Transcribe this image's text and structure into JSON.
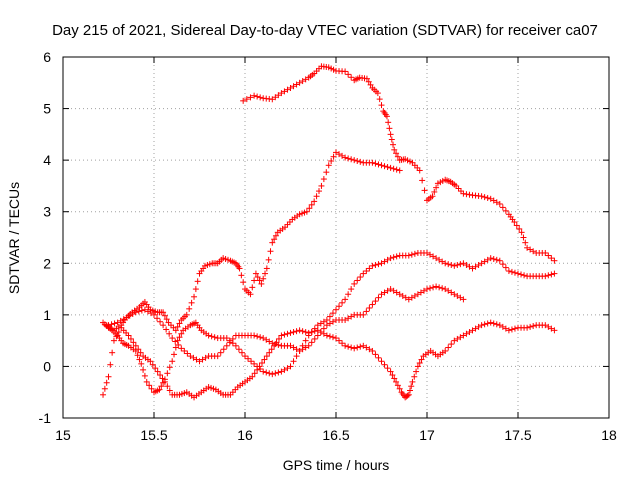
{
  "chart_data": {
    "type": "scatter",
    "title": "Day 215 of 2021, Sidereal Day-to-day VTEC variation (SDTVAR) for receiver ca07",
    "xlabel": "GPS time / hours",
    "ylabel": "SDTVAR / TECUs",
    "xlim": [
      15,
      18
    ],
    "ylim": [
      -1,
      6
    ],
    "xticks": [
      "15",
      "15.5",
      "16",
      "16.5",
      "17",
      "17.5",
      "18"
    ],
    "yticks": [
      "-1",
      "0",
      "1",
      "2",
      "3",
      "4",
      "5",
      "6"
    ],
    "grid": true,
    "legend": "none",
    "marker": "plus",
    "color": "#ff0000",
    "series": [
      {
        "x": [
          15.99,
          16.05,
          16.1,
          16.15,
          16.2,
          16.25,
          16.3,
          16.35,
          16.38,
          16.42,
          16.46,
          16.5,
          16.55,
          16.6,
          16.63,
          16.67,
          16.7,
          16.73,
          16.76,
          16.78,
          16.8,
          16.82,
          16.85,
          16.88,
          16.92,
          16.96,
          17.0,
          17.03,
          17.06,
          17.1,
          17.13,
          17.16,
          17.2,
          17.25,
          17.3,
          17.35,
          17.4,
          17.45,
          17.48,
          17.52,
          17.55,
          17.6,
          17.65,
          17.7
        ],
        "y": [
          5.15,
          5.25,
          5.2,
          5.18,
          5.3,
          5.4,
          5.5,
          5.6,
          5.68,
          5.82,
          5.8,
          5.73,
          5.72,
          5.55,
          5.6,
          5.58,
          5.4,
          5.3,
          4.95,
          4.85,
          4.5,
          4.2,
          4.0,
          4.02,
          3.95,
          3.8,
          3.22,
          3.3,
          3.55,
          3.62,
          3.58,
          3.5,
          3.35,
          3.32,
          3.3,
          3.25,
          3.15,
          2.95,
          2.8,
          2.6,
          2.3,
          2.2,
          2.2,
          2.05
        ]
      },
      {
        "x": [
          15.22,
          15.25,
          15.28,
          15.32,
          15.35,
          15.38,
          15.42,
          15.45,
          15.48,
          15.52,
          15.55,
          15.58,
          15.62,
          15.65,
          15.68,
          15.72,
          15.75,
          15.78,
          15.82,
          15.85,
          15.88,
          15.92,
          15.95,
          15.97,
          16.0,
          16.03,
          16.06,
          16.09,
          16.12,
          16.15,
          16.18,
          16.22,
          16.26,
          16.3,
          16.34,
          16.38,
          16.42,
          16.46,
          16.5,
          16.55,
          16.6,
          16.65,
          16.7,
          16.75,
          16.8,
          16.85
        ],
        "y": [
          0.85,
          0.75,
          0.7,
          0.8,
          0.95,
          1.05,
          1.15,
          1.25,
          1.1,
          1.05,
          1.05,
          0.85,
          0.7,
          0.9,
          1.0,
          1.35,
          1.8,
          1.95,
          2.0,
          2.0,
          2.1,
          2.05,
          2.0,
          1.9,
          1.5,
          1.4,
          1.8,
          1.6,
          1.9,
          2.4,
          2.6,
          2.7,
          2.85,
          2.95,
          3.0,
          3.2,
          3.5,
          3.9,
          4.15,
          4.05,
          4.0,
          3.95,
          3.95,
          3.9,
          3.85,
          3.8
        ]
      },
      {
        "x": [
          15.24,
          15.27,
          15.3,
          15.33,
          15.36,
          15.4,
          15.43,
          15.46,
          15.5,
          15.53,
          15.56,
          15.6,
          15.63,
          15.66,
          15.7,
          15.73,
          15.76,
          15.8,
          15.85,
          15.9,
          15.95,
          16.0,
          16.05,
          16.1,
          16.15,
          16.2,
          16.25,
          16.3,
          16.35,
          16.4,
          16.45,
          16.5,
          16.55,
          16.6,
          16.65,
          16.7,
          16.75,
          16.8,
          16.85,
          16.9,
          16.95,
          17.0,
          17.05,
          17.1,
          17.15,
          17.2,
          17.25,
          17.3,
          17.35,
          17.4,
          17.45,
          17.5,
          17.55,
          17.6,
          17.65,
          17.7
        ],
        "y": [
          0.8,
          0.7,
          0.6,
          0.45,
          0.4,
          0.3,
          0.05,
          -0.3,
          -0.5,
          -0.45,
          -0.25,
          0.1,
          0.5,
          0.7,
          0.8,
          0.85,
          0.7,
          0.6,
          0.55,
          0.55,
          0.4,
          0.2,
          0.05,
          -0.1,
          -0.15,
          -0.1,
          0.0,
          0.3,
          0.6,
          0.8,
          0.9,
          1.1,
          1.3,
          1.6,
          1.8,
          1.95,
          2.0,
          2.1,
          2.15,
          2.15,
          2.2,
          2.2,
          2.1,
          2.0,
          1.95,
          2.0,
          1.9,
          2.0,
          2.1,
          2.05,
          1.85,
          1.8,
          1.75,
          1.75,
          1.75,
          1.8
        ]
      },
      {
        "x": [
          15.25,
          15.3,
          15.35,
          15.4,
          15.45,
          15.5,
          15.55,
          15.6,
          15.65,
          15.7,
          15.75,
          15.8,
          15.85,
          15.9,
          15.95,
          16.0,
          16.05,
          16.1,
          16.15,
          16.2,
          16.25,
          16.3,
          16.35,
          16.4,
          16.45,
          16.5,
          16.55,
          16.6,
          16.65,
          16.7,
          16.75,
          16.8,
          16.85,
          16.9,
          16.95,
          17.0,
          17.05,
          17.1,
          17.15,
          17.2
        ],
        "y": [
          0.8,
          0.85,
          0.95,
          1.05,
          1.1,
          1.0,
          0.8,
          0.55,
          0.35,
          0.2,
          0.1,
          0.2,
          0.2,
          0.4,
          0.6,
          0.6,
          0.6,
          0.55,
          0.45,
          0.4,
          0.4,
          0.3,
          0.4,
          0.6,
          0.8,
          0.9,
          0.9,
          1.0,
          1.0,
          1.2,
          1.4,
          1.5,
          1.4,
          1.3,
          1.4,
          1.5,
          1.55,
          1.5,
          1.4,
          1.3
        ]
      },
      {
        "x": [
          15.22,
          15.25,
          15.28,
          15.32,
          15.36,
          15.4,
          15.44,
          15.48,
          15.52,
          15.56,
          15.6,
          15.64,
          15.68,
          15.72,
          15.76,
          15.8,
          15.84,
          15.88,
          15.92,
          15.96,
          16.0,
          16.04,
          16.08,
          16.12,
          16.16,
          16.2,
          16.25,
          16.3,
          16.35,
          16.4,
          16.45,
          16.5,
          16.55,
          16.6,
          16.65,
          16.7,
          16.75,
          16.8,
          16.83,
          16.86,
          16.88,
          16.9,
          16.92,
          16.95,
          16.98,
          17.02,
          17.06,
          17.1,
          17.15,
          17.2,
          17.25,
          17.3,
          17.35,
          17.4,
          17.45,
          17.5,
          17.55,
          17.6,
          17.65,
          17.7
        ],
        "y": [
          -0.55,
          -0.2,
          0.5,
          0.75,
          0.6,
          0.4,
          0.2,
          0.1,
          -0.1,
          -0.3,
          -0.55,
          -0.55,
          -0.5,
          -0.6,
          -0.5,
          -0.4,
          -0.45,
          -0.55,
          -0.55,
          -0.4,
          -0.3,
          -0.2,
          0.0,
          0.2,
          0.4,
          0.6,
          0.65,
          0.7,
          0.65,
          0.7,
          0.6,
          0.55,
          0.4,
          0.35,
          0.4,
          0.3,
          0.1,
          -0.1,
          -0.3,
          -0.5,
          -0.6,
          -0.55,
          -0.3,
          0.0,
          0.2,
          0.3,
          0.2,
          0.3,
          0.5,
          0.6,
          0.7,
          0.8,
          0.85,
          0.8,
          0.7,
          0.75,
          0.75,
          0.8,
          0.8,
          0.7
        ]
      }
    ]
  }
}
